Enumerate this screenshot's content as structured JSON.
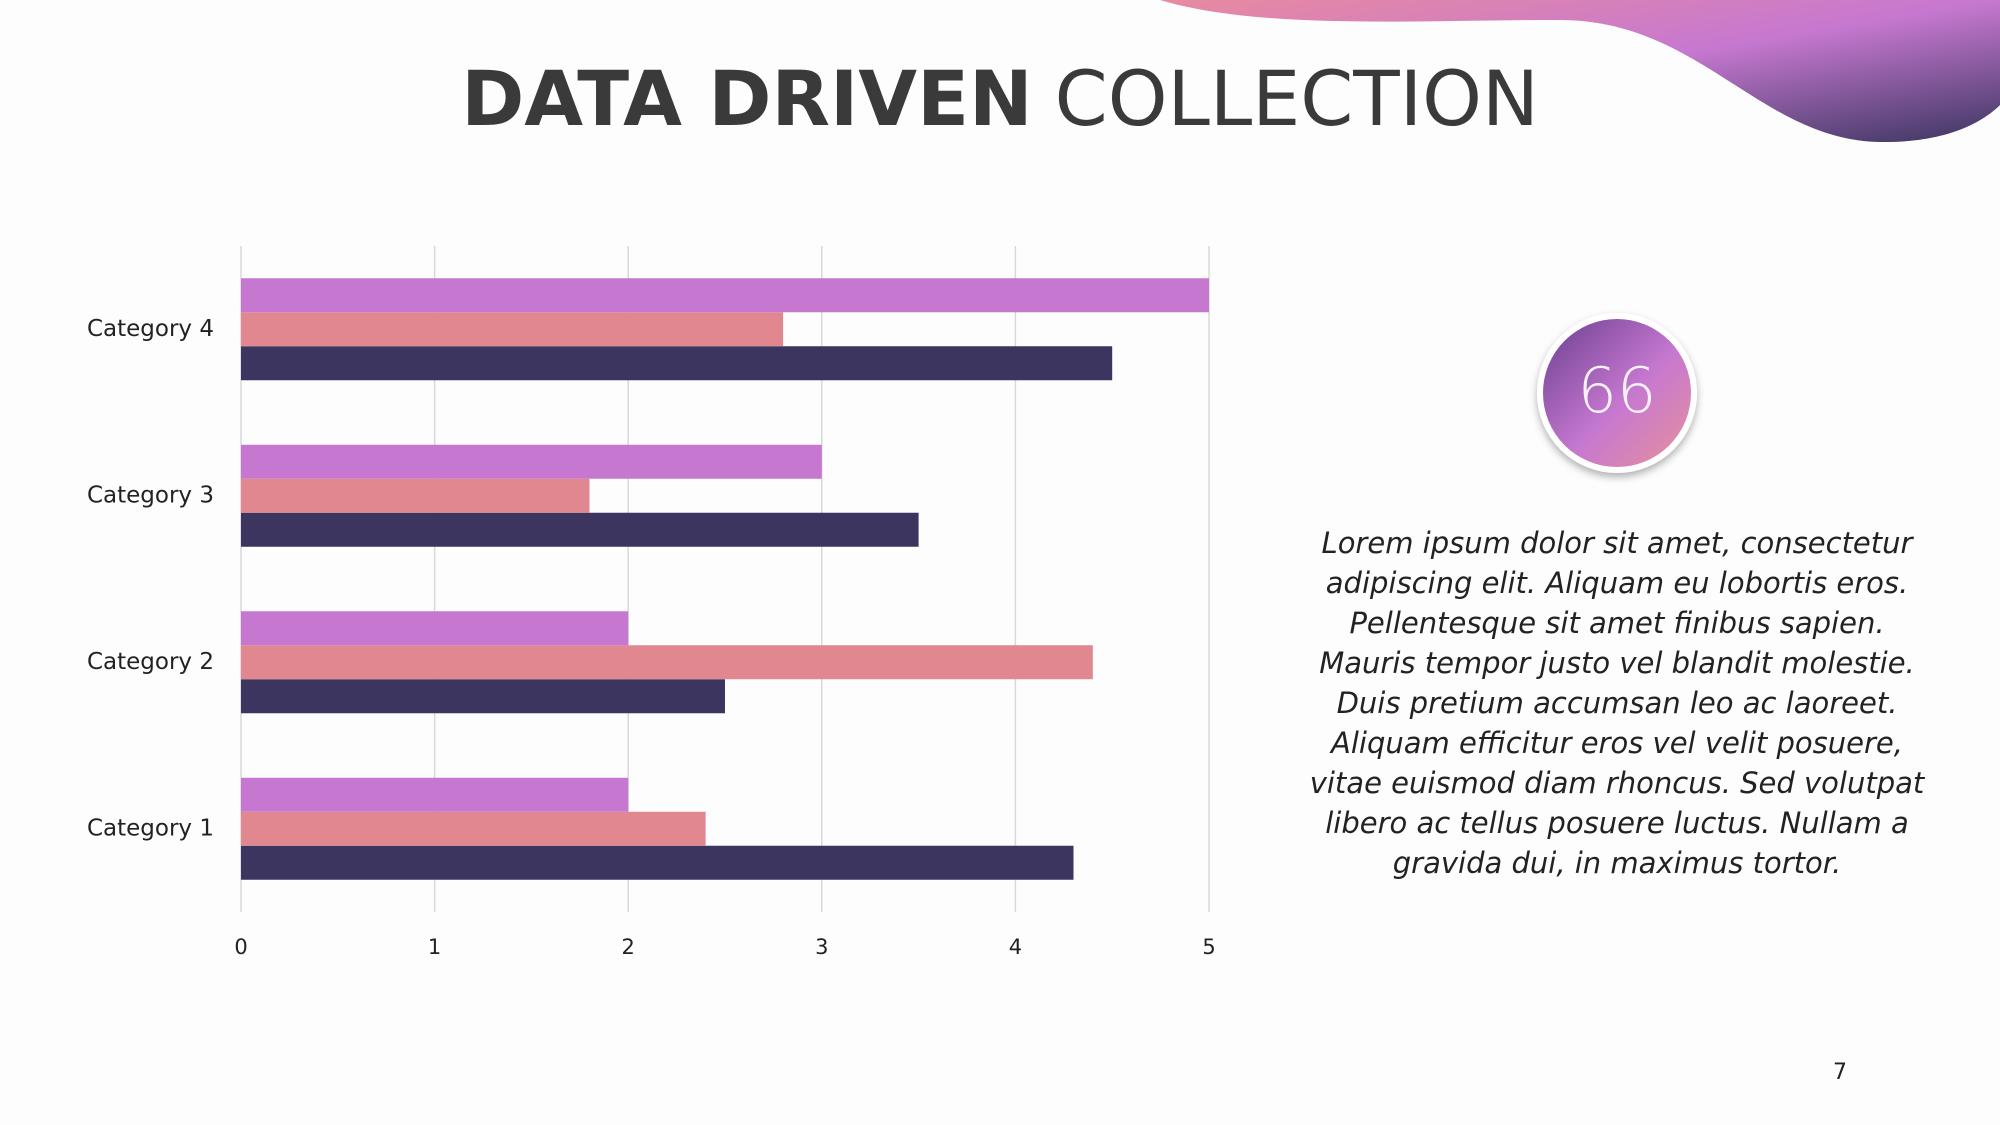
{
  "chart_data": {
    "type": "bar",
    "orientation": "horizontal",
    "categories": [
      "Category 1",
      "Category 2",
      "Category 3",
      "Category 4"
    ],
    "series": [
      {
        "color": "#3b3560",
        "values": [
          4.3,
          2.5,
          3.5,
          4.5
        ]
      },
      {
        "color": "#e08790",
        "values": [
          2.4,
          4.4,
          1.8,
          2.8
        ]
      },
      {
        "color": "#c678d0",
        "values": [
          2,
          2,
          3,
          5
        ]
      }
    ],
    "xlim": [
      0,
      5
    ],
    "xticks": [
      0,
      1,
      2,
      3,
      4,
      5
    ],
    "grid": true
  },
  "header": {
    "title_bold": "DATA DRIVEN",
    "title_regular": "COLLECTION"
  },
  "quote": {
    "badge": "66",
    "lines": [
      "Lorem ipsum dolor sit amet, consectetur",
      "adipiscing elit. Aliquam eu lobortis eros.",
      "Pellentesque sit amet finibus sapien.",
      "Mauris tempor justo vel blandit molestie.",
      "Duis pretium accumsan leo ac laoreet.",
      "Aliquam efficitur eros vel velit posuere,",
      "vitae euismod diam rhoncus. Sed volutpat",
      "libero ac tellus posuere luctus. Nullam a",
      "gravida dui, in maximus tortor."
    ]
  },
  "footer": {
    "page_number": "7"
  }
}
